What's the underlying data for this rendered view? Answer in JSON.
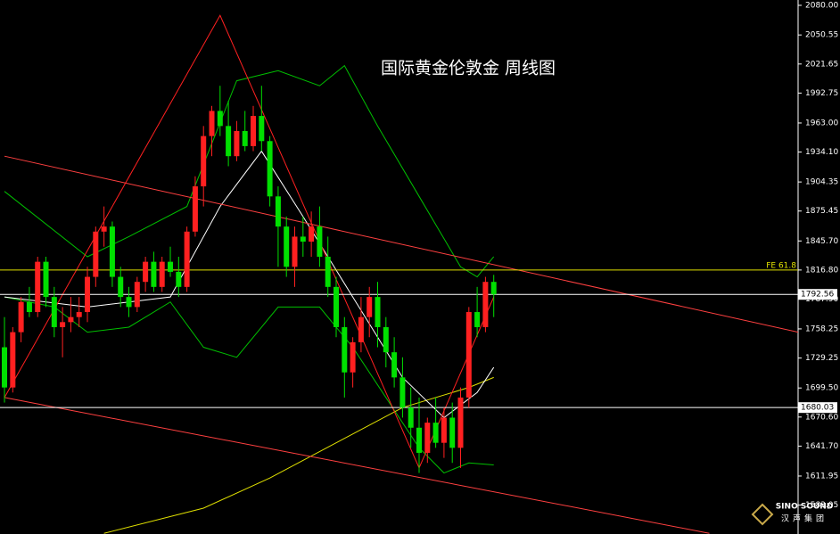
{
  "chart_data": {
    "type": "candlestick",
    "title": "国际黄金伦敦金 周线图",
    "logo": "SINO SOUND",
    "logo_sub": "汉声集团",
    "up_color": "#ff2020",
    "down_color": "#00e000",
    "xlim": [
      -0.54,
      95.7
    ],
    "ylim": [
      1554.3,
      2085.3
    ],
    "yticks": [
      {
        "value": 2080,
        "label": "2080.00"
      },
      {
        "value": 2050.55,
        "label": "2050.55"
      },
      {
        "value": 2021.65,
        "label": "2021.65"
      },
      {
        "value": 1992.75,
        "label": "1992.75"
      },
      {
        "value": 1963,
        "label": "1963.00"
      },
      {
        "value": 1934.1,
        "label": "1934.10"
      },
      {
        "value": 1904.35,
        "label": "1904.35"
      },
      {
        "value": 1875.45,
        "label": "1875.45"
      },
      {
        "value": 1845.7,
        "label": "1845.70"
      },
      {
        "value": 1816.8,
        "label": "1816.80"
      },
      {
        "value": 1787.9,
        "label": "1787.90"
      },
      {
        "value": 1758.25,
        "label": "1758.25"
      },
      {
        "value": 1729.25,
        "label": "1729.25"
      },
      {
        "value": 1699.5,
        "label": "1699.50"
      },
      {
        "value": 1670.6,
        "label": "1670.60"
      },
      {
        "value": 1641.7,
        "label": "1641.70"
      },
      {
        "value": 1611.95,
        "label": "1611.95"
      },
      {
        "value": 1583.05,
        "label": "1583.05"
      }
    ],
    "open": [
      1740,
      1700,
      1755,
      1785,
      1775,
      1825,
      1790,
      1760,
      1765,
      1770,
      1775,
      1810,
      1855,
      1860,
      1810,
      1790,
      1780,
      1805,
      1825,
      1800,
      1825,
      1815,
      1800,
      1855,
      1900,
      1950,
      1975,
      1960,
      1930,
      1955,
      1940,
      1970,
      1945,
      1890,
      1860,
      1820,
      1850,
      1845,
      1860,
      1830,
      1800,
      1760,
      1715,
      1745,
      1770,
      1790,
      1760,
      1735,
      1710,
      1680,
      1660,
      1635,
      1665,
      1645,
      1670,
      1640,
      1690,
      1775,
      1760,
      1805
    ],
    "high": [
      1770,
      1760,
      1790,
      1800,
      1830,
      1830,
      1800,
      1780,
      1790,
      1790,
      1820,
      1860,
      1880,
      1865,
      1820,
      1800,
      1810,
      1830,
      1835,
      1830,
      1840,
      1830,
      1860,
      1910,
      1960,
      1980,
      2000,
      1985,
      1965,
      1975,
      1980,
      2000,
      1950,
      1900,
      1870,
      1860,
      1870,
      1875,
      1880,
      1850,
      1810,
      1770,
      1750,
      1790,
      1800,
      1805,
      1770,
      1750,
      1730,
      1700,
      1690,
      1670,
      1690,
      1680,
      1685,
      1700,
      1780,
      1800,
      1810,
      1812
    ],
    "low": [
      1685,
      1695,
      1745,
      1770,
      1770,
      1780,
      1750,
      1730,
      1755,
      1760,
      1765,
      1800,
      1840,
      1800,
      1780,
      1770,
      1775,
      1795,
      1795,
      1795,
      1810,
      1790,
      1795,
      1850,
      1880,
      1930,
      1950,
      1920,
      1925,
      1935,
      1935,
      1935,
      1880,
      1820,
      1810,
      1800,
      1830,
      1830,
      1820,
      1790,
      1750,
      1690,
      1700,
      1735,
      1750,
      1740,
      1720,
      1700,
      1670,
      1640,
      1615,
      1625,
      1640,
      1630,
      1625,
      1620,
      1680,
      1750,
      1755,
      1770
    ],
    "close": [
      1700,
      1755,
      1785,
      1775,
      1825,
      1790,
      1760,
      1765,
      1770,
      1775,
      1810,
      1855,
      1860,
      1810,
      1790,
      1780,
      1805,
      1825,
      1800,
      1825,
      1815,
      1800,
      1855,
      1900,
      1950,
      1975,
      1960,
      1930,
      1955,
      1940,
      1970,
      1945,
      1890,
      1860,
      1820,
      1850,
      1845,
      1860,
      1830,
      1800,
      1760,
      1715,
      1745,
      1770,
      1790,
      1760,
      1735,
      1710,
      1680,
      1660,
      1635,
      1665,
      1645,
      1670,
      1640,
      1690,
      1775,
      1760,
      1805,
      1792.56
    ],
    "overlays": [
      {
        "color": "#00c000",
        "x": [
          0,
          10,
          15,
          22,
          28,
          33,
          38,
          41,
          45,
          50,
          55,
          57,
          59
        ],
        "values": [
          1895,
          1830,
          1850,
          1880,
          2005,
          2015,
          2000,
          2020,
          1960,
          1890,
          1820,
          1810,
          1830
        ]
      },
      {
        "color": "#00c000",
        "x": [
          0,
          6,
          10,
          15,
          20,
          24,
          28,
          33,
          38,
          42,
          46,
          50,
          53,
          56,
          59
        ],
        "values": [
          1790,
          1780,
          1755,
          1760,
          1785,
          1740,
          1730,
          1780,
          1780,
          1740,
          1690,
          1640,
          1615,
          1625,
          1623
        ]
      },
      {
        "color": "#e0e000",
        "x": [
          12,
          24,
          32,
          40,
          48,
          56,
          59
        ],
        "values": [
          1555,
          1580,
          1610,
          1645,
          1680,
          1700,
          1710
        ]
      },
      {
        "color": "#ffffff",
        "x": [
          0,
          10,
          20,
          26,
          31,
          36,
          42,
          48,
          53,
          57,
          59
        ],
        "values": [
          1790,
          1780,
          1790,
          1880,
          1935,
          1870,
          1790,
          1710,
          1670,
          1695,
          1720
        ]
      },
      {
        "color": "#ff4040",
        "x": [
          0,
          95.7
        ],
        "values": [
          1930,
          1755
        ]
      },
      {
        "color": "#ff4040",
        "x": [
          0,
          85
        ],
        "values": [
          1690,
          1555
        ]
      },
      {
        "color": "#ff2020",
        "x": [
          0,
          26,
          50,
          59
        ],
        "values": [
          1690,
          2070,
          1620,
          1790
        ]
      }
    ],
    "hlines": [
      {
        "value": 1816.8,
        "label": "FE 61.8",
        "color": "#e0e000"
      },
      {
        "value": 1792.56,
        "label": "1792.56",
        "color": "#ffffff"
      },
      {
        "value": 1680.03,
        "label": "1680.03",
        "color": "#ffffff"
      }
    ]
  }
}
